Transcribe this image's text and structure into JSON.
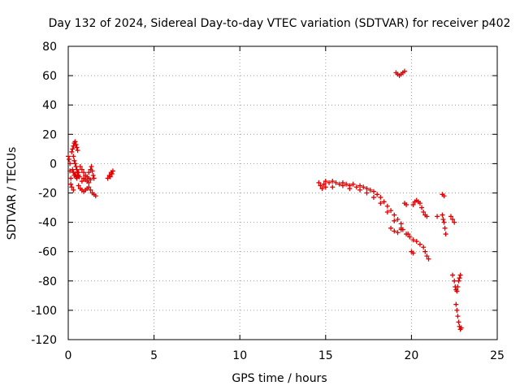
{
  "chart_data": {
    "type": "scatter",
    "title": "Day 132 of 2024, Sidereal Day-to-day VTEC variation (SDTVAR) for receiver p402",
    "xlabel": "GPS time / hours",
    "ylabel": "SDTVAR / TECUs",
    "xlim": [
      0,
      25
    ],
    "ylim": [
      -120,
      80
    ],
    "xticks": [
      0,
      5,
      10,
      15,
      20,
      25
    ],
    "yticks": [
      -120,
      -100,
      -80,
      -60,
      -40,
      -20,
      0,
      20,
      40,
      60,
      80
    ],
    "grid": true,
    "marker": "+",
    "color": "#e00000",
    "series": [
      {
        "name": "SDTVAR",
        "points": [
          [
            0.0,
            5
          ],
          [
            0.05,
            3
          ],
          [
            0.1,
            0
          ],
          [
            0.1,
            -5
          ],
          [
            0.15,
            -10
          ],
          [
            0.15,
            -14
          ],
          [
            0.2,
            -16
          ],
          [
            0.3,
            -18
          ],
          [
            0.2,
            8
          ],
          [
            0.25,
            10
          ],
          [
            0.3,
            12
          ],
          [
            0.35,
            14
          ],
          [
            0.4,
            15
          ],
          [
            0.45,
            13
          ],
          [
            0.5,
            11
          ],
          [
            0.55,
            9
          ],
          [
            0.3,
            5
          ],
          [
            0.35,
            2
          ],
          [
            0.4,
            0
          ],
          [
            0.45,
            -2
          ],
          [
            0.5,
            -4
          ],
          [
            0.55,
            -6
          ],
          [
            0.6,
            -8
          ],
          [
            0.65,
            -9
          ],
          [
            0.25,
            -4
          ],
          [
            0.3,
            -6
          ],
          [
            0.35,
            -8
          ],
          [
            0.4,
            -7
          ],
          [
            0.45,
            -9
          ],
          [
            0.5,
            -10
          ],
          [
            0.55,
            -8
          ],
          [
            0.6,
            -6
          ],
          [
            0.6,
            -15
          ],
          [
            0.7,
            -17
          ],
          [
            0.8,
            -18
          ],
          [
            0.9,
            -19
          ],
          [
            1.0,
            -18
          ],
          [
            1.1,
            -17
          ],
          [
            1.2,
            -16
          ],
          [
            0.7,
            -2
          ],
          [
            0.8,
            -4
          ],
          [
            0.9,
            -6
          ],
          [
            1.0,
            -8
          ],
          [
            1.1,
            -9
          ],
          [
            1.2,
            -10
          ],
          [
            1.3,
            -11
          ],
          [
            0.8,
            -12
          ],
          [
            0.9,
            -10
          ],
          [
            1.0,
            -11
          ],
          [
            1.1,
            -12
          ],
          [
            1.2,
            -13
          ],
          [
            1.2,
            -6
          ],
          [
            1.3,
            -4
          ],
          [
            1.35,
            -2
          ],
          [
            1.4,
            -5
          ],
          [
            1.45,
            -8
          ],
          [
            1.5,
            -10
          ],
          [
            1.3,
            -18
          ],
          [
            1.4,
            -20
          ],
          [
            1.5,
            -21
          ],
          [
            1.6,
            -22
          ],
          [
            2.3,
            -10
          ],
          [
            2.4,
            -8
          ],
          [
            2.5,
            -6
          ],
          [
            2.6,
            -5
          ],
          [
            2.55,
            -7
          ],
          [
            2.45,
            -9
          ],
          [
            14.6,
            -13
          ],
          [
            14.7,
            -15
          ],
          [
            14.8,
            -17
          ],
          [
            14.9,
            -14
          ],
          [
            15.0,
            -12
          ],
          [
            15.2,
            -13
          ],
          [
            15.4,
            -12
          ],
          [
            15.6,
            -13
          ],
          [
            15.8,
            -14
          ],
          [
            16.0,
            -13
          ],
          [
            16.2,
            -14
          ],
          [
            16.4,
            -15
          ],
          [
            16.6,
            -14
          ],
          [
            16.8,
            -16
          ],
          [
            17.0,
            -15
          ],
          [
            17.2,
            -16
          ],
          [
            17.4,
            -17
          ],
          [
            17.6,
            -18
          ],
          [
            17.8,
            -19
          ],
          [
            18.0,
            -21
          ],
          [
            18.2,
            -23
          ],
          [
            18.4,
            -26
          ],
          [
            18.6,
            -29
          ],
          [
            18.8,
            -32
          ],
          [
            19.0,
            -35
          ],
          [
            19.2,
            -38
          ],
          [
            19.4,
            -41
          ],
          [
            15.0,
            -16
          ],
          [
            15.4,
            -16
          ],
          [
            16.0,
            -15
          ],
          [
            16.4,
            -17
          ],
          [
            17.0,
            -18
          ],
          [
            17.4,
            -20
          ],
          [
            17.8,
            -23
          ],
          [
            18.2,
            -27
          ],
          [
            18.6,
            -33
          ],
          [
            19.0,
            -39
          ],
          [
            19.4,
            -44
          ],
          [
            19.8,
            -48
          ],
          [
            18.8,
            -44
          ],
          [
            19.0,
            -46
          ],
          [
            19.2,
            -47
          ],
          [
            19.4,
            -45
          ],
          [
            19.5,
            -45
          ],
          [
            19.7,
            -48
          ],
          [
            19.9,
            -50
          ],
          [
            20.1,
            -52
          ],
          [
            20.3,
            -53
          ],
          [
            20.5,
            -55
          ],
          [
            20.7,
            -57
          ],
          [
            20.8,
            -60
          ],
          [
            20.9,
            -63
          ],
          [
            21.0,
            -65
          ],
          [
            20.0,
            -60
          ],
          [
            20.1,
            -61
          ],
          [
            20.1,
            -28
          ],
          [
            20.2,
            -26
          ],
          [
            20.3,
            -25
          ],
          [
            20.4,
            -26
          ],
          [
            20.5,
            -27
          ],
          [
            20.6,
            -30
          ],
          [
            20.7,
            -33
          ],
          [
            20.8,
            -35
          ],
          [
            20.9,
            -36
          ],
          [
            19.6,
            -27
          ],
          [
            19.7,
            -28
          ],
          [
            21.8,
            -35
          ],
          [
            21.85,
            -38
          ],
          [
            21.9,
            -40
          ],
          [
            21.95,
            -44
          ],
          [
            22.0,
            -48
          ],
          [
            21.8,
            -21
          ],
          [
            21.9,
            -22
          ],
          [
            21.5,
            -36
          ],
          [
            22.3,
            -36
          ],
          [
            22.4,
            -38
          ],
          [
            22.5,
            -40
          ],
          [
            19.1,
            62
          ],
          [
            19.2,
            61
          ],
          [
            19.3,
            60
          ],
          [
            19.4,
            61
          ],
          [
            19.5,
            62
          ],
          [
            19.6,
            63
          ],
          [
            22.4,
            -76
          ],
          [
            22.5,
            -80
          ],
          [
            22.55,
            -84
          ],
          [
            22.6,
            -86
          ],
          [
            22.65,
            -87
          ],
          [
            22.7,
            -84
          ],
          [
            22.75,
            -80
          ],
          [
            22.8,
            -78
          ],
          [
            22.85,
            -76
          ],
          [
            22.6,
            -96
          ],
          [
            22.65,
            -100
          ],
          [
            22.7,
            -104
          ],
          [
            22.75,
            -108
          ],
          [
            22.8,
            -111
          ],
          [
            22.85,
            -113
          ],
          [
            22.9,
            -112
          ]
        ]
      }
    ]
  }
}
